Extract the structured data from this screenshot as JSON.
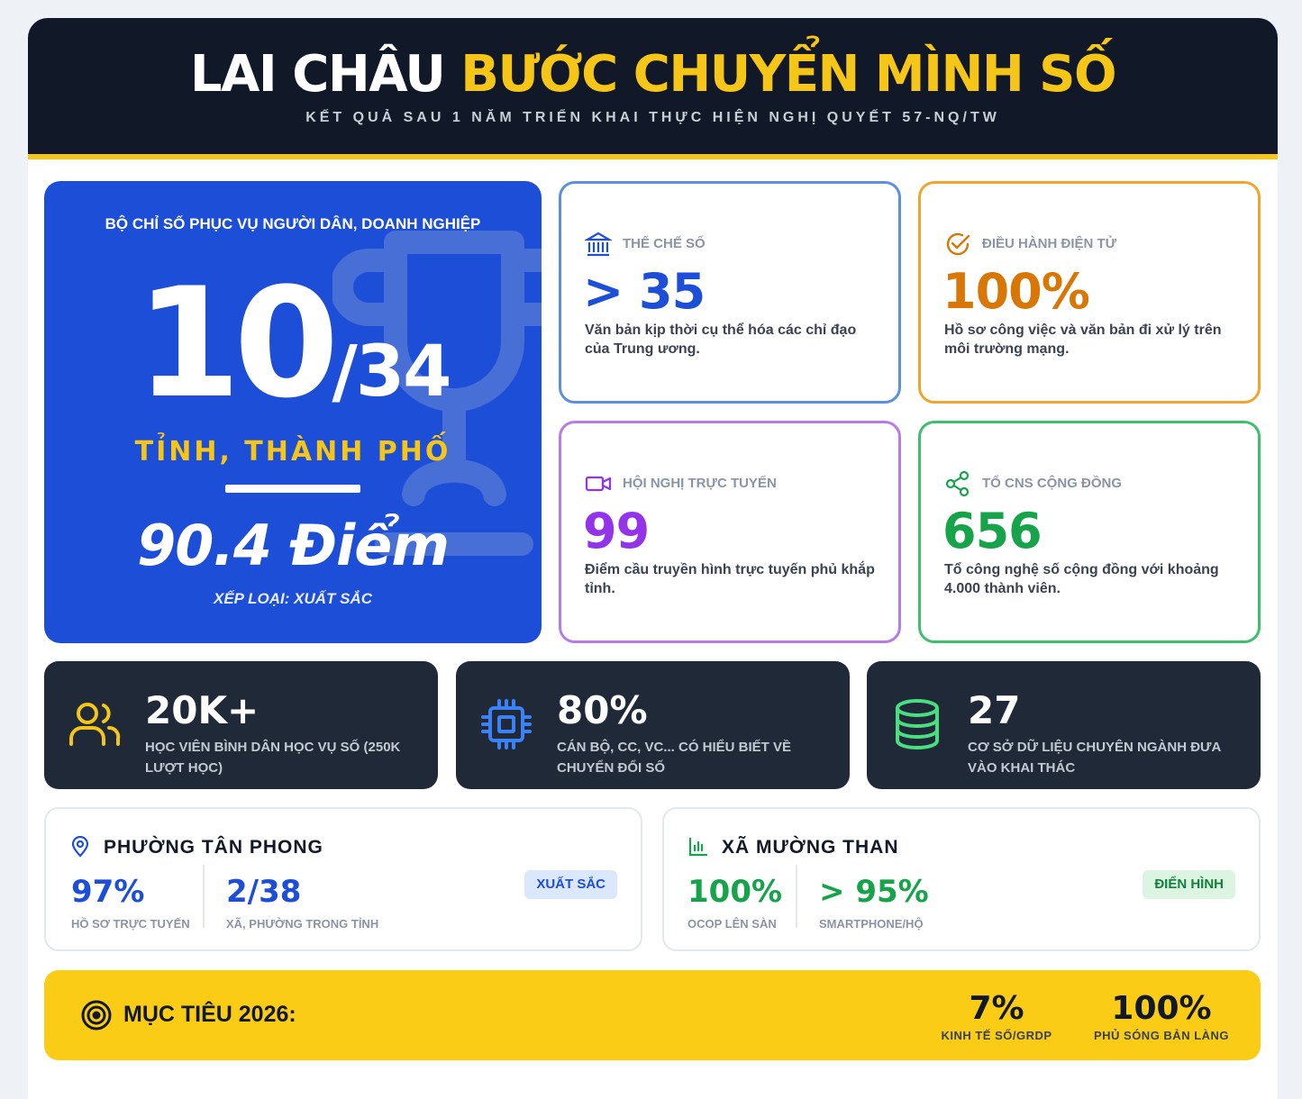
{
  "header": {
    "title_white": "LAI CHÂU",
    "title_yellow": "BƯỚC CHUYỂN MÌNH SỐ",
    "subtitle": "KẾT QUẢ SAU 1 NĂM TRIỂN KHAI THỰC HIỆN NGHỊ QUYẾT 57-NQ/TW"
  },
  "hero": {
    "label": "BỘ CHỈ SỐ PHỤC VỤ NGƯỜI DÂN, DOANH NGHIỆP",
    "rank": "10",
    "total": "/34",
    "unit": "TỈNH, THÀNH PHỐ",
    "score": "90.4 Điểm",
    "classification": "XẾP LOẠI: XUẤT SẮC",
    "icon": "trophy-icon"
  },
  "stats": [
    {
      "icon": "bank-icon",
      "label": "THỂ CHẾ SỐ",
      "value": "> 35",
      "desc": "Văn bản kịp thời cụ thể hóa các chỉ đạo của Trung ương.",
      "color": "#1d4ed8",
      "border": "#5b8fe0"
    },
    {
      "icon": "check-circle-icon",
      "label": "ĐIỀU HÀNH ĐIỆN TỬ",
      "value": "100%",
      "desc": "Hồ sơ công việc và văn bản đi xử lý trên môi trường mạng.",
      "color": "#d97706",
      "border": "#f0a52c"
    },
    {
      "icon": "video-icon",
      "label": "HỘI NGHỊ TRỰC TUYẾN",
      "value": "99",
      "desc": "Điểm cầu truyền hình trực tuyến phủ khắp tỉnh.",
      "color": "#9333ea",
      "border": "#b77ae8"
    },
    {
      "icon": "share-icon",
      "label": "TỔ CNS CỘNG ĐỒNG",
      "value": "656",
      "desc": "Tổ công nghệ số cộng đồng với khoảng 4.000 thành viên.",
      "color": "#16a34a",
      "border": "#3cc06a"
    }
  ],
  "dark_cards": [
    {
      "icon": "users-icon",
      "value": "20K+",
      "desc": "HỌC VIÊN BÌNH DÂN HỌC VỤ SỐ (250K LƯỢT HỌC)",
      "icon_color": "#f5c518"
    },
    {
      "icon": "cpu-icon",
      "value": "80%",
      "desc": "CÁN BỘ, CC, VC... CÓ HIỂU BIẾT VỀ CHUYỂN ĐỔI SỐ",
      "icon_color": "#3b82f6"
    },
    {
      "icon": "database-icon",
      "value": "27",
      "desc": "CƠ SỞ DỮ LIỆU CHUYÊN NGÀNH ĐƯA VÀO KHAI THÁC",
      "icon_color": "#4ade80"
    }
  ],
  "locations": [
    {
      "icon": "map-pin-icon",
      "name": "PHƯỜNG TÂN PHONG",
      "badge": "XUẤT SẮC",
      "metrics": [
        {
          "value": "97%",
          "label": "HỒ SƠ TRỰC TUYẾN"
        },
        {
          "value": "2/38",
          "label": "XÃ, PHƯỜNG TRONG TỈNH"
        }
      ]
    },
    {
      "icon": "bar-chart-icon",
      "name": "XÃ MƯỜNG THAN",
      "badge": "ĐIỂN HÌNH",
      "metrics": [
        {
          "value": "100%",
          "label": "OCOP LÊN SÀN"
        },
        {
          "value": "> 95%",
          "label": "SMARTPHONE/HỘ"
        }
      ]
    }
  ],
  "goal": {
    "icon": "target-icon",
    "label": "MỤC TIÊU 2026:",
    "metrics": [
      {
        "value": "7%",
        "label": "KINH TẾ SỐ/GRDP"
      },
      {
        "value": "100%",
        "label": "PHỦ SÓNG BẢN LÀNG"
      }
    ]
  }
}
